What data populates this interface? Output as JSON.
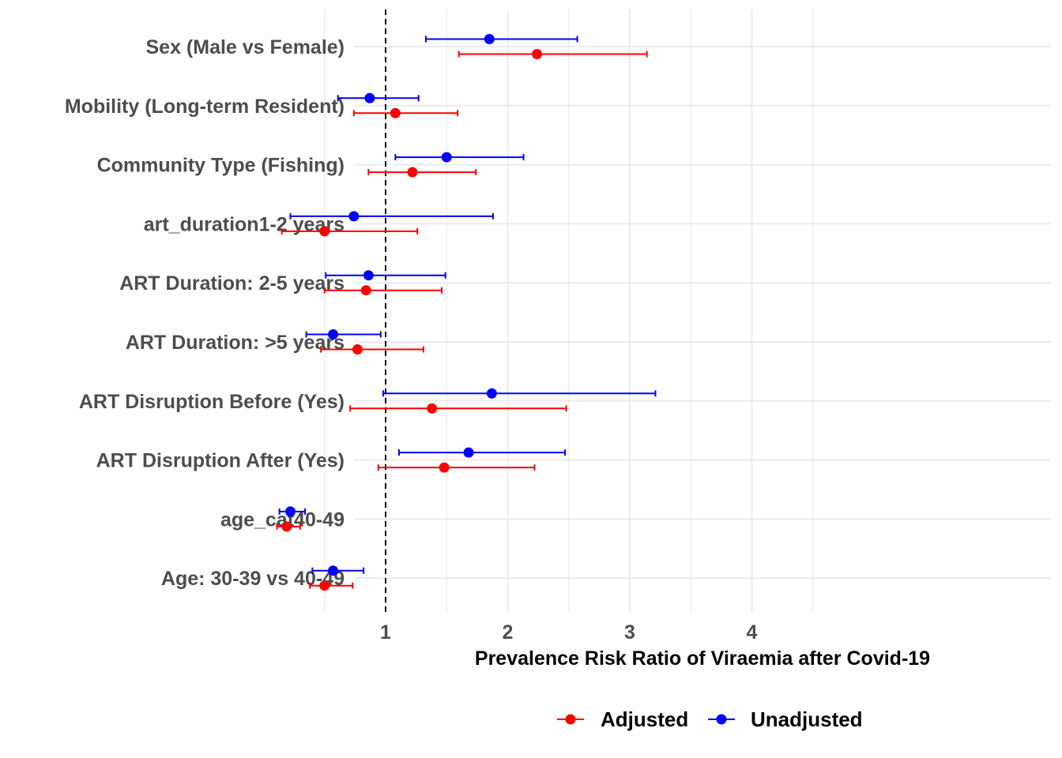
{
  "chart_data": {
    "type": "forest",
    "title": "",
    "xlabel": "Prevalence Risk Ratio of Viraemia after Covid-19",
    "ylabel": "",
    "xlim": [
      0,
      4.75
    ],
    "x_ticks": [
      1,
      2,
      3,
      4
    ],
    "x_tick_labels": [
      "1",
      "2",
      "3",
      "4"
    ],
    "x_minor_gridlines": [
      0.5,
      1.5,
      2.5,
      3.5,
      4.5
    ],
    "reference_line": 1,
    "grid": true,
    "legend_position": "bottom",
    "categories": [
      "Sex (Male vs Female)",
      "Mobility (Long-term Resident)",
      "Community Type (Fishing)",
      "art_duration1-2 years",
      "ART Duration: 2-5 years",
      "ART Duration: >5 years",
      "ART Disruption Before (Yes)",
      "ART Disruption After (Yes)",
      "age_cat40-49",
      "Age: 30-39 vs 40-49"
    ],
    "series": [
      {
        "name": "Unadjusted",
        "color": "#0000ff",
        "estimate": [
          1.85,
          0.87,
          1.5,
          0.74,
          0.86,
          0.57,
          1.87,
          1.68,
          0.22,
          0.57
        ],
        "lower": [
          1.33,
          0.61,
          1.08,
          0.22,
          0.51,
          0.35,
          0.98,
          1.11,
          0.13,
          0.4
        ],
        "upper": [
          2.57,
          1.27,
          2.13,
          1.88,
          1.49,
          0.96,
          3.21,
          2.47,
          0.34,
          0.82
        ]
      },
      {
        "name": "Adjusted",
        "color": "#ff0000",
        "estimate": [
          2.24,
          1.08,
          1.22,
          0.5,
          0.84,
          0.77,
          1.38,
          1.48,
          0.19,
          0.5
        ],
        "lower": [
          1.6,
          0.74,
          0.86,
          0.15,
          0.5,
          0.47,
          0.71,
          0.94,
          0.11,
          0.38
        ],
        "upper": [
          3.14,
          1.59,
          1.74,
          1.26,
          1.46,
          1.31,
          2.48,
          2.22,
          0.3,
          0.73
        ]
      }
    ]
  }
}
